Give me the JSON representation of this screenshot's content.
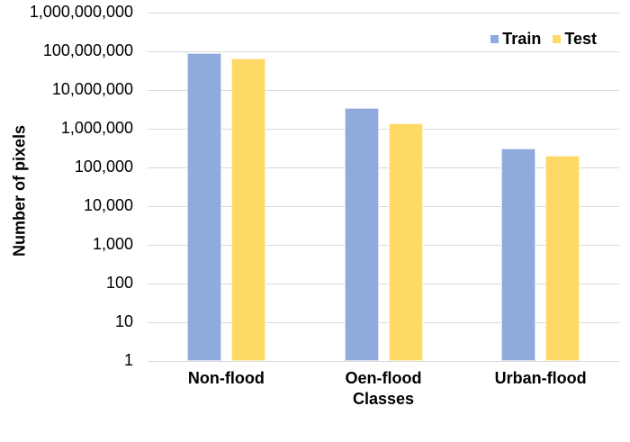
{
  "chart_data": {
    "type": "bar",
    "title": "",
    "xlabel": "Classes",
    "ylabel": "Number of pixels",
    "categories": [
      "Non-flood",
      "Oen-flood",
      "Urban-flood"
    ],
    "series": [
      {
        "name": "Train",
        "color": "#8FAADC",
        "values": [
          90000000,
          3500000,
          300000
        ]
      },
      {
        "name": "Test",
        "color": "#FFD966",
        "values": [
          65000000,
          1400000,
          200000
        ]
      }
    ],
    "y_scale": "log",
    "ylim": [
      1,
      1000000000
    ],
    "y_ticks": [
      "1,000,000,000",
      "100,000,000",
      "10,000,000",
      "1,000,000",
      "100,000",
      "10,000",
      "1,000",
      "100",
      "10",
      "1"
    ],
    "grid": "horizontal",
    "legend_position": "top-right",
    "colors": {
      "gridline": "#D9D9D9",
      "text": "#000000",
      "background": "#FFFFFF"
    }
  }
}
